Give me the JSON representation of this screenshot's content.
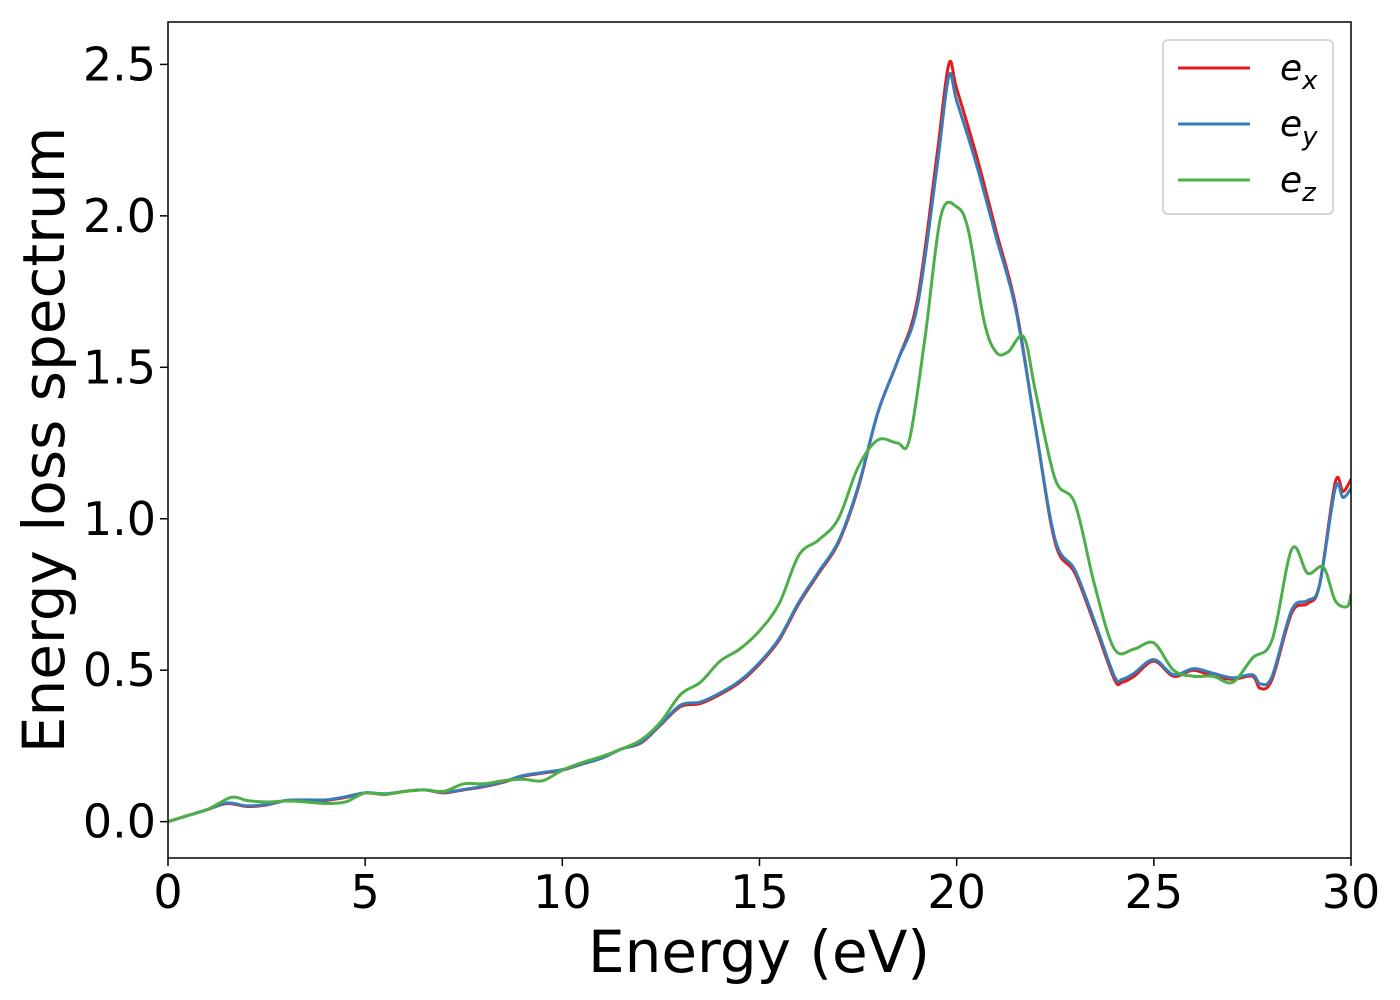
{
  "chart_data": {
    "type": "line",
    "title": "",
    "xlabel": "Energy (eV)",
    "ylabel": "Energy loss spectrum",
    "xlim": [
      0,
      30
    ],
    "ylim": [
      -0.12,
      2.64
    ],
    "xticks": [
      0,
      5,
      10,
      15,
      20,
      25,
      30
    ],
    "xtick_labels": [
      "0",
      "5",
      "10",
      "15",
      "20",
      "25",
      "30"
    ],
    "yticks": [
      0.0,
      0.5,
      1.0,
      1.5,
      2.0,
      2.5
    ],
    "ytick_labels": [
      "0.0",
      "0.5",
      "1.0",
      "1.5",
      "2.0",
      "2.5"
    ],
    "grid": false,
    "legend_position": "top-right",
    "series": [
      {
        "name": "e_x",
        "legend_base": "e",
        "legend_sub": "x",
        "color": "#e41a1c",
        "x": [
          0,
          0.5,
          1.0,
          1.5,
          2.0,
          2.5,
          3.0,
          3.5,
          4.0,
          4.5,
          5.0,
          5.5,
          6.0,
          6.5,
          7.0,
          7.5,
          8.0,
          8.5,
          9.0,
          9.5,
          10.0,
          10.5,
          11.0,
          11.5,
          12.0,
          12.5,
          13.0,
          13.5,
          14.0,
          14.5,
          15.0,
          15.5,
          16.0,
          16.5,
          17.0,
          17.5,
          18.0,
          18.5,
          19.0,
          19.5,
          19.8,
          20.0,
          20.5,
          21.0,
          21.5,
          22.0,
          22.5,
          23.0,
          23.5,
          24.0,
          24.2,
          24.5,
          25.0,
          25.5,
          26.0,
          26.5,
          27.0,
          27.5,
          27.7,
          28.0,
          28.5,
          28.9,
          29.2,
          29.6,
          29.8,
          30.0
        ],
        "values": [
          0.0,
          0.02,
          0.04,
          0.06,
          0.05,
          0.055,
          0.07,
          0.07,
          0.07,
          0.08,
          0.095,
          0.09,
          0.1,
          0.105,
          0.095,
          0.105,
          0.115,
          0.13,
          0.15,
          0.16,
          0.17,
          0.19,
          0.21,
          0.24,
          0.26,
          0.32,
          0.38,
          0.39,
          0.42,
          0.46,
          0.52,
          0.6,
          0.72,
          0.82,
          0.92,
          1.1,
          1.35,
          1.52,
          1.72,
          2.2,
          2.5,
          2.42,
          2.2,
          1.95,
          1.7,
          1.3,
          0.92,
          0.82,
          0.65,
          0.47,
          0.46,
          0.48,
          0.53,
          0.48,
          0.5,
          0.48,
          0.47,
          0.48,
          0.44,
          0.47,
          0.69,
          0.72,
          0.78,
          1.12,
          1.09,
          1.13
        ]
      },
      {
        "name": "e_y",
        "legend_base": "e",
        "legend_sub": "y",
        "color": "#377eb8",
        "x": [
          0,
          0.5,
          1.0,
          1.5,
          2.0,
          2.5,
          3.0,
          3.5,
          4.0,
          4.5,
          5.0,
          5.5,
          6.0,
          6.5,
          7.0,
          7.5,
          8.0,
          8.5,
          9.0,
          9.5,
          10.0,
          10.5,
          11.0,
          11.5,
          12.0,
          12.5,
          13.0,
          13.5,
          14.0,
          14.5,
          15.0,
          15.5,
          16.0,
          16.5,
          17.0,
          17.5,
          18.0,
          18.5,
          19.0,
          19.5,
          19.8,
          20.0,
          20.5,
          21.0,
          21.5,
          22.0,
          22.5,
          23.0,
          23.5,
          24.0,
          24.2,
          24.5,
          25.0,
          25.5,
          26.0,
          26.5,
          27.0,
          27.5,
          27.7,
          28.0,
          28.5,
          28.9,
          29.2,
          29.6,
          29.8,
          30.0
        ],
        "values": [
          0.0,
          0.02,
          0.04,
          0.062,
          0.052,
          0.057,
          0.07,
          0.072,
          0.072,
          0.082,
          0.095,
          0.092,
          0.1,
          0.105,
          0.097,
          0.106,
          0.117,
          0.132,
          0.152,
          0.162,
          0.172,
          0.19,
          0.21,
          0.24,
          0.262,
          0.322,
          0.385,
          0.395,
          0.425,
          0.465,
          0.525,
          0.605,
          0.725,
          0.825,
          0.925,
          1.105,
          1.35,
          1.52,
          1.7,
          2.16,
          2.46,
          2.38,
          2.17,
          1.93,
          1.69,
          1.3,
          0.93,
          0.83,
          0.66,
          0.48,
          0.47,
          0.49,
          0.535,
          0.485,
          0.505,
          0.49,
          0.475,
          0.485,
          0.455,
          0.48,
          0.7,
          0.73,
          0.78,
          1.1,
          1.07,
          1.1
        ]
      },
      {
        "name": "e_z",
        "legend_base": "e",
        "legend_sub": "z",
        "color": "#4daf4a",
        "x": [
          0,
          0.5,
          1.0,
          1.6,
          2.0,
          2.5,
          3.0,
          3.5,
          4.0,
          4.5,
          5.0,
          5.5,
          6.0,
          6.5,
          7.0,
          7.5,
          8.0,
          8.5,
          9.0,
          9.5,
          10.0,
          10.5,
          11.0,
          11.5,
          12.0,
          12.5,
          13.0,
          13.5,
          14.0,
          14.5,
          15.0,
          15.5,
          16.0,
          16.5,
          17.0,
          17.5,
          18.0,
          18.5,
          18.8,
          19.2,
          19.6,
          20.0,
          20.3,
          20.7,
          21.0,
          21.3,
          21.7,
          22.0,
          22.5,
          23.0,
          23.5,
          24.0,
          24.5,
          25.0,
          25.5,
          26.0,
          26.5,
          27.0,
          27.5,
          28.0,
          28.5,
          28.9,
          29.3,
          29.6,
          29.9,
          30.0
        ],
        "values": [
          0.0,
          0.02,
          0.04,
          0.08,
          0.07,
          0.065,
          0.068,
          0.065,
          0.06,
          0.065,
          0.095,
          0.09,
          0.1,
          0.105,
          0.1,
          0.125,
          0.125,
          0.135,
          0.14,
          0.135,
          0.17,
          0.195,
          0.215,
          0.24,
          0.27,
          0.33,
          0.42,
          0.46,
          0.53,
          0.57,
          0.63,
          0.72,
          0.88,
          0.93,
          1.0,
          1.17,
          1.26,
          1.25,
          1.26,
          1.6,
          2.0,
          2.03,
          1.95,
          1.65,
          1.55,
          1.55,
          1.6,
          1.42,
          1.13,
          1.05,
          0.78,
          0.57,
          0.57,
          0.59,
          0.5,
          0.48,
          0.48,
          0.46,
          0.54,
          0.6,
          0.9,
          0.82,
          0.84,
          0.73,
          0.71,
          0.75
        ]
      }
    ]
  }
}
